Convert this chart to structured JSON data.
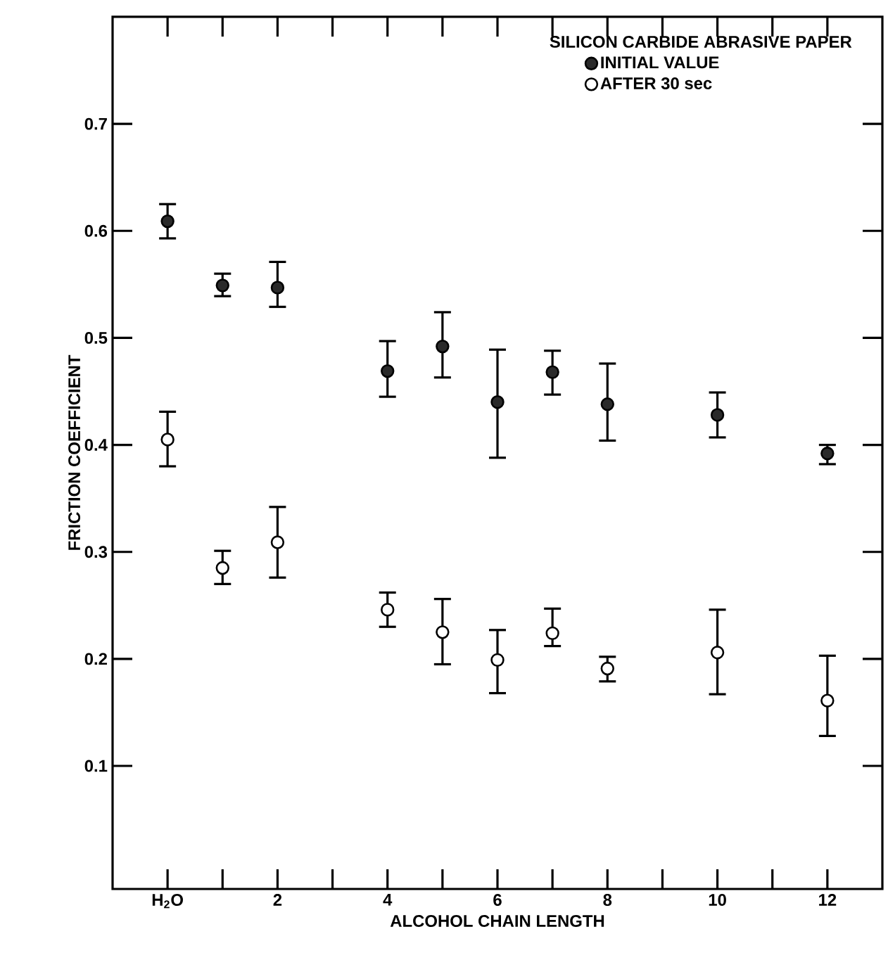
{
  "chart_data": {
    "type": "scatter",
    "xlabel": "ALCOHOL CHAIN LENGTH",
    "ylabel": "FRICTION COEFFICIENT",
    "legend_title": "SILICON CARBIDE ABRASIVE PAPER",
    "categories": [
      "H$_{2}$O",
      null,
      "2",
      null,
      "4",
      null,
      "6",
      null,
      "8",
      null,
      "10",
      null,
      "12"
    ],
    "series": [
      {
        "name": "INITIAL VALUE",
        "color": "#2a2a2a",
        "values": [
          0.609,
          0.549,
          0.547,
          null,
          0.469,
          0.492,
          0.44,
          0.468,
          0.438,
          null,
          0.428,
          null,
          0.392
        ],
        "errors": [
          [
            0.593,
            0.625
          ],
          [
            0.539,
            0.56
          ],
          [
            0.529,
            0.571
          ],
          null,
          [
            0.445,
            0.497
          ],
          [
            0.463,
            0.524
          ],
          [
            0.388,
            0.489
          ],
          [
            0.447,
            0.488
          ],
          [
            0.404,
            0.476
          ],
          null,
          [
            0.407,
            0.449
          ],
          null,
          [
            0.382,
            0.4
          ]
        ]
      },
      {
        "name": "AFTER 30 sec",
        "color": "#ffffff",
        "values": [
          0.405,
          0.285,
          0.309,
          null,
          0.246,
          0.225,
          0.199,
          0.224,
          0.191,
          null,
          0.206,
          null,
          0.161
        ],
        "errors": [
          [
            0.38,
            0.431
          ],
          [
            0.27,
            0.301
          ],
          [
            0.276,
            0.342
          ],
          null,
          [
            0.23,
            0.262
          ],
          [
            0.195,
            0.256
          ],
          [
            0.168,
            0.227
          ],
          [
            0.212,
            0.247
          ],
          [
            0.179,
            0.202
          ],
          null,
          [
            0.167,
            0.246
          ],
          null,
          [
            0.128,
            0.203
          ]
        ]
      }
    ],
    "ylim": [
      -0.015,
      0.8
    ],
    "yticks": [
      0.1,
      0.2,
      0.3,
      0.4,
      0.5,
      0.6,
      0.7
    ],
    "legend": "top right",
    "grid": false
  }
}
